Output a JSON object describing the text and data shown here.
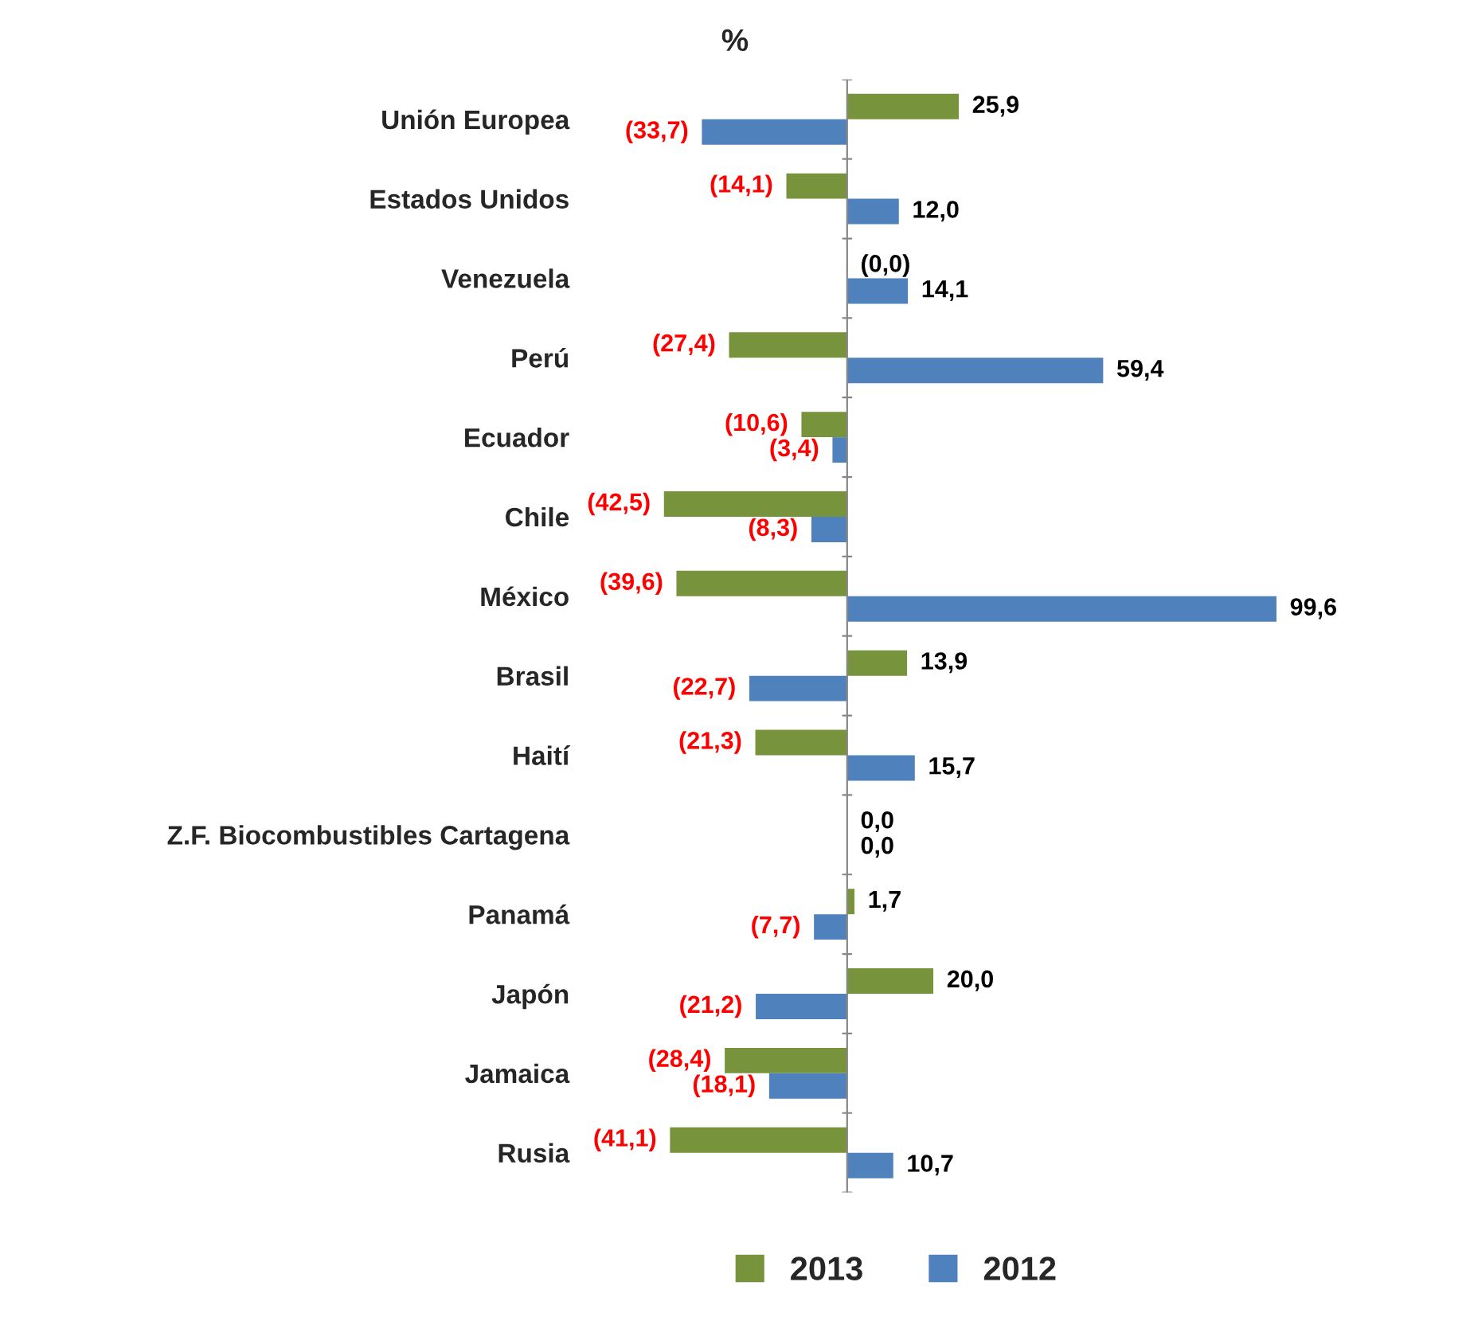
{
  "chart_data": {
    "type": "bar",
    "orientation": "horizontal",
    "categories": [
      "Unión Europea",
      "Estados Unidos",
      "Venezuela",
      "Perú",
      "Ecuador",
      "Chile",
      "México",
      "Brasil",
      "Haití",
      "Z.F. Biocombustibles Cartagena",
      "Panamá",
      "Japón",
      "Jamaica",
      "Rusia"
    ],
    "series": [
      {
        "name": "2013",
        "color": "#77933c",
        "values": [
          25.9,
          -14.1,
          0.0,
          -27.4,
          -10.6,
          -42.5,
          -39.6,
          13.9,
          -21.3,
          0.0,
          1.7,
          20.0,
          -28.4,
          -41.1
        ],
        "value_labels": [
          "25,9",
          "(14,1)",
          "(0,0)",
          "(27,4)",
          "(10,6)",
          "(42,5)",
          "(39,6)",
          "13,9",
          "(21,3)",
          "0,0",
          "1,7",
          "20,0",
          "(28,4)",
          "(41,1)"
        ]
      },
      {
        "name": "2012",
        "color": "#4f81bd",
        "values": [
          -33.7,
          12.0,
          14.1,
          59.4,
          -3.4,
          -8.3,
          99.6,
          -22.7,
          15.7,
          0.0,
          -7.7,
          -21.2,
          -18.1,
          10.7
        ],
        "value_labels": [
          "(33,7)",
          "12,0",
          "14,1",
          "59,4",
          "(3,4)",
          "(8,3)",
          "99,6",
          "(22,7)",
          "15,7",
          "0,0",
          "(7,7)",
          "(21,2)",
          "(18,1)",
          "10,7"
        ]
      }
    ],
    "tick_labels": "y",
    "annotations": [
      "%"
    ],
    "legend": "bottom",
    "grid": false
  }
}
